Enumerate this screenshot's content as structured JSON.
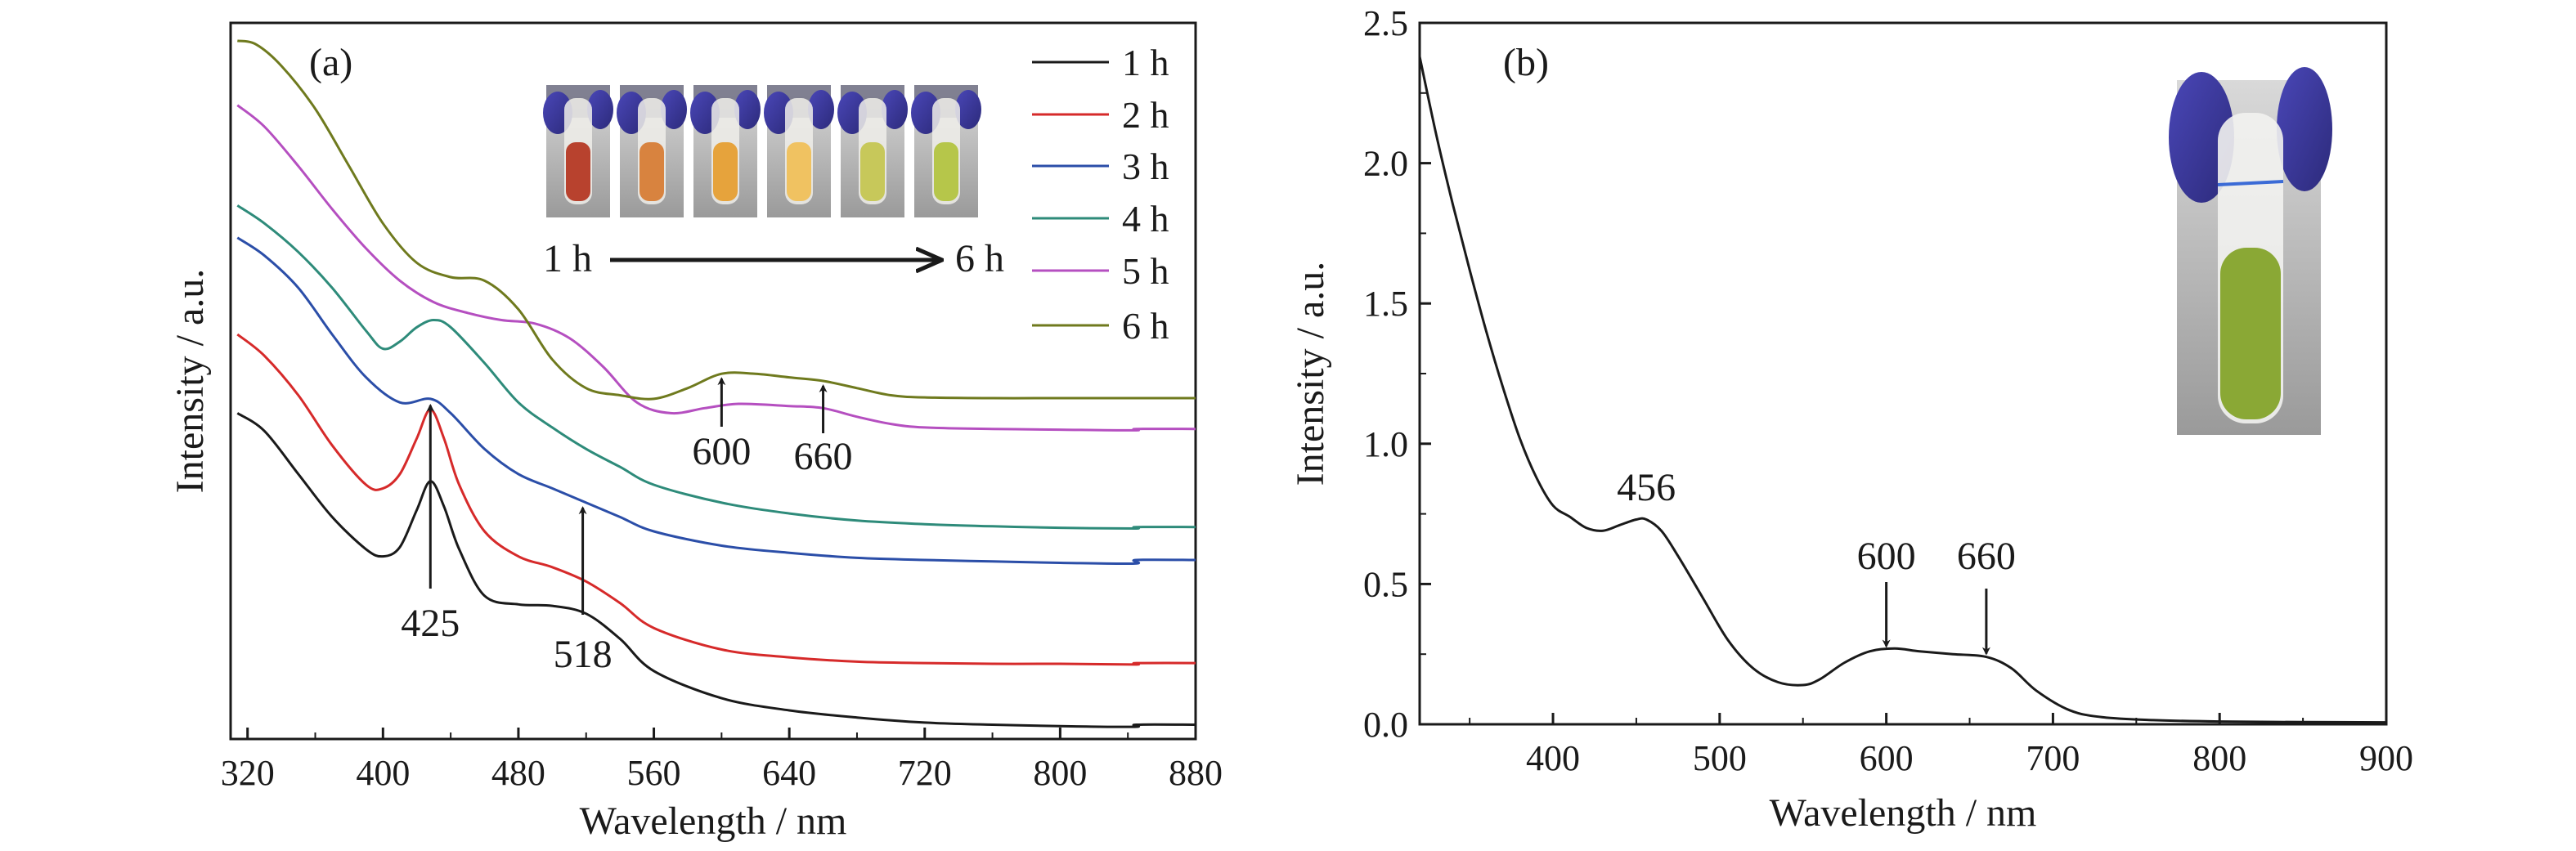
{
  "chart_data": [
    {
      "panel_label": "(a)",
      "type": "line",
      "xlabel": "Wavelength / nm",
      "ylabel": "Intensity / a.u.",
      "xlim": [
        310,
        880
      ],
      "ylim": [
        0,
        1.0
      ],
      "x_ticks": [
        320,
        400,
        480,
        560,
        640,
        720,
        800,
        880
      ],
      "y_ticks_shown": false,
      "legend_placement": "top-right",
      "series": [
        {
          "name": "1 h",
          "color": "#1a1a1a",
          "x": [
            314,
            330,
            350,
            370,
            390,
            400,
            410,
            420,
            428,
            436,
            445,
            460,
            480,
            500,
            520,
            540,
            560,
            600,
            640,
            680,
            720,
            760,
            800,
            844,
            845,
            880
          ],
          "y": [
            0.455,
            0.43,
            0.37,
            0.31,
            0.265,
            0.255,
            0.268,
            0.32,
            0.36,
            0.325,
            0.265,
            0.2,
            0.188,
            0.186,
            0.175,
            0.14,
            0.095,
            0.057,
            0.04,
            0.03,
            0.023,
            0.02,
            0.018,
            0.017,
            0.02,
            0.02
          ]
        },
        {
          "name": "2 h",
          "color": "#d62a2a",
          "x": [
            314,
            330,
            350,
            370,
            390,
            400,
            410,
            420,
            428,
            436,
            445,
            460,
            480,
            500,
            520,
            540,
            560,
            600,
            640,
            680,
            720,
            760,
            800,
            844,
            845,
            880
          ],
          "y": [
            0.565,
            0.535,
            0.48,
            0.41,
            0.355,
            0.35,
            0.37,
            0.42,
            0.46,
            0.42,
            0.355,
            0.29,
            0.255,
            0.24,
            0.22,
            0.19,
            0.155,
            0.125,
            0.114,
            0.108,
            0.106,
            0.105,
            0.105,
            0.104,
            0.106,
            0.106
          ]
        },
        {
          "name": "3 h",
          "color": "#2b4ea8",
          "x": [
            314,
            330,
            350,
            370,
            390,
            410,
            428,
            440,
            460,
            480,
            500,
            520,
            540,
            560,
            600,
            640,
            680,
            720,
            760,
            800,
            844,
            845,
            880
          ],
          "y": [
            0.7,
            0.675,
            0.63,
            0.565,
            0.505,
            0.47,
            0.475,
            0.455,
            0.405,
            0.37,
            0.35,
            0.33,
            0.31,
            0.29,
            0.27,
            0.26,
            0.253,
            0.25,
            0.248,
            0.246,
            0.245,
            0.25,
            0.25
          ]
        },
        {
          "name": "4 h",
          "color": "#2e8b7a",
          "x": [
            314,
            330,
            350,
            370,
            390,
            400,
            410,
            420,
            430,
            440,
            460,
            480,
            500,
            520,
            540,
            560,
            600,
            640,
            680,
            720,
            760,
            800,
            844,
            845,
            880
          ],
          "y": [
            0.745,
            0.72,
            0.68,
            0.63,
            0.57,
            0.545,
            0.555,
            0.575,
            0.585,
            0.575,
            0.525,
            0.47,
            0.435,
            0.405,
            0.38,
            0.355,
            0.33,
            0.315,
            0.305,
            0.3,
            0.297,
            0.295,
            0.294,
            0.296,
            0.296
          ]
        },
        {
          "name": "5 h",
          "color": "#b54fc0",
          "x": [
            314,
            330,
            350,
            370,
            390,
            410,
            430,
            450,
            470,
            490,
            510,
            530,
            550,
            570,
            590,
            610,
            640,
            660,
            680,
            700,
            720,
            760,
            800,
            844,
            845,
            880
          ],
          "y": [
            0.885,
            0.855,
            0.8,
            0.74,
            0.685,
            0.64,
            0.61,
            0.595,
            0.585,
            0.58,
            0.56,
            0.52,
            0.47,
            0.455,
            0.462,
            0.468,
            0.465,
            0.462,
            0.45,
            0.44,
            0.435,
            0.433,
            0.432,
            0.431,
            0.433,
            0.433
          ]
        },
        {
          "name": "6 h",
          "color": "#6f7a1e",
          "x": [
            314,
            325,
            340,
            360,
            380,
            400,
            420,
            440,
            460,
            480,
            500,
            520,
            540,
            560,
            580,
            600,
            620,
            640,
            660,
            680,
            700,
            720,
            760,
            800,
            840,
            880
          ],
          "y": [
            0.975,
            0.97,
            0.94,
            0.88,
            0.8,
            0.72,
            0.665,
            0.645,
            0.64,
            0.6,
            0.53,
            0.49,
            0.48,
            0.475,
            0.49,
            0.51,
            0.51,
            0.505,
            0.5,
            0.49,
            0.48,
            0.477,
            0.476,
            0.476,
            0.476,
            0.476
          ]
        }
      ],
      "annotations": [
        {
          "text": "425",
          "x": 428
        },
        {
          "text": "518",
          "x": 518
        },
        {
          "text": "600",
          "x": 600
        },
        {
          "text": "660",
          "x": 660
        }
      ],
      "inset": {
        "start_label": "1 h",
        "end_label": "6 h",
        "vial_colors": [
          "#b8422e",
          "#d8833f",
          "#e6a33c",
          "#f0c261",
          "#c7c85a",
          "#b6c64a"
        ]
      }
    },
    {
      "panel_label": "(b)",
      "type": "line",
      "xlabel": "Wavelength / nm",
      "ylabel": "Intensity / a.u.",
      "xlim": [
        320,
        900
      ],
      "ylim": [
        0,
        2.5
      ],
      "x_ticks": [
        400,
        500,
        600,
        700,
        800,
        900
      ],
      "y_ticks": [
        0.0,
        0.5,
        1.0,
        1.5,
        2.0,
        2.5
      ],
      "series": [
        {
          "color": "#1a1a1a",
          "x": [
            320,
            330,
            340,
            350,
            360,
            370,
            380,
            390,
            400,
            410,
            420,
            430,
            440,
            450,
            456,
            465,
            475,
            490,
            505,
            520,
            535,
            550,
            560,
            575,
            590,
            605,
            620,
            640,
            660,
            675,
            690,
            710,
            730,
            760,
            800,
            850,
            900
          ],
          "y": [
            2.38,
            2.1,
            1.85,
            1.62,
            1.4,
            1.2,
            1.02,
            0.88,
            0.78,
            0.74,
            0.7,
            0.69,
            0.71,
            0.73,
            0.73,
            0.69,
            0.6,
            0.45,
            0.3,
            0.2,
            0.15,
            0.14,
            0.16,
            0.22,
            0.26,
            0.27,
            0.26,
            0.25,
            0.24,
            0.2,
            0.12,
            0.05,
            0.025,
            0.015,
            0.01,
            0.008,
            0.007
          ]
        }
      ],
      "annotations": [
        {
          "text": "456",
          "x": 456
        },
        {
          "text": "600",
          "x": 600
        },
        {
          "text": "660",
          "x": 660
        }
      ],
      "inset": {
        "liquid_color": "#8aa835"
      }
    }
  ]
}
